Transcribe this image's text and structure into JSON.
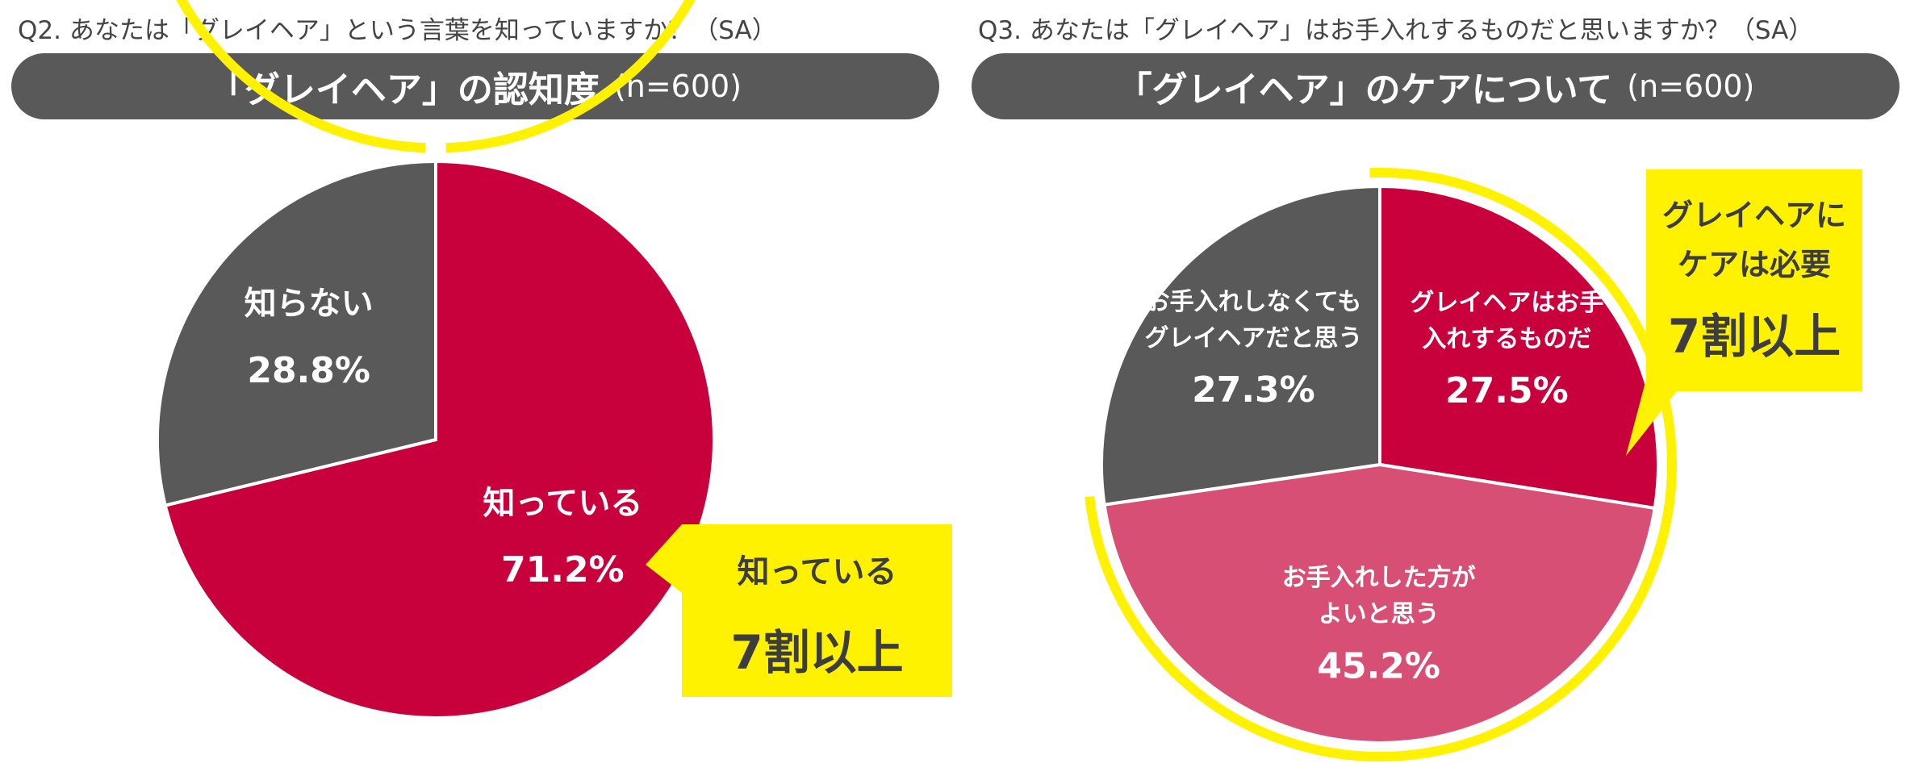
{
  "charts": [
    {
      "question": "Q2. あなたは「グレイヘア」という言葉を知っていますか？（SA）",
      "banner_title": "「グレイヘア」の認知度",
      "banner_n": "(n=600)",
      "callout": {
        "line1": "知っている",
        "line2": "7割以上"
      }
    },
    {
      "question": "Q3. あなたは「グレイヘア」はお手入れするものだと思いますか？（SA）",
      "banner_title": "「グレイヘア」のケアについて",
      "banner_n": "(n=600)",
      "callout": {
        "line1": "グレイヘアに",
        "line1b": "ケアは必要",
        "line2": "7割以上"
      }
    }
  ],
  "chart_data": [
    {
      "type": "pie",
      "slices": [
        {
          "label": "知っている",
          "value": 71.2,
          "value_label": "71.2%",
          "color": "#c8003c"
        },
        {
          "label": "知らない",
          "value": 28.8,
          "value_label": "28.8%",
          "color": "#595959"
        }
      ]
    },
    {
      "type": "pie",
      "slices": [
        {
          "label": "グレイヘアはお手入れするものだ",
          "label_lines": [
            "グレイヘアはお手",
            "入れするものだ"
          ],
          "value": 27.5,
          "value_label": "27.5%",
          "color": "#c8003c"
        },
        {
          "label": "お手入れした方がよいと思う",
          "label_lines": [
            "お手入れした方が",
            "よいと思う"
          ],
          "value": 45.2,
          "value_label": "45.2%",
          "color": "#d84f76"
        },
        {
          "label": "お手入れしなくてもグレイヘアだと思う",
          "label_lines": [
            "お手入れしなくても",
            "グレイヘアだと思う"
          ],
          "value": 27.3,
          "value_label": "27.3%",
          "color": "#595959"
        }
      ]
    }
  ],
  "colors": {
    "highlight": "#fff200",
    "banner": "#595959",
    "callout_text": "#3d3d3d"
  }
}
